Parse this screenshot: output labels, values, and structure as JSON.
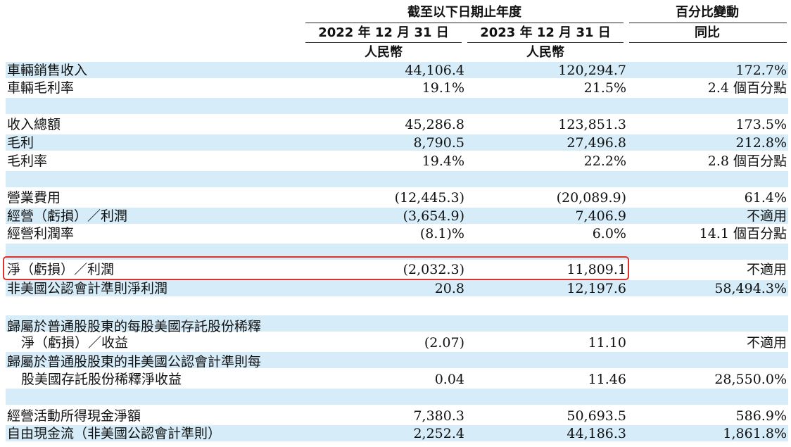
{
  "header": {
    "period_group": "截至以下日期止年度",
    "change_group": "百分比變動",
    "col_2022": "2022 年 12 月 31 日",
    "col_2023": "2023 年 12 月 31 日",
    "col_yoy": "同比",
    "currency_2022": "人民幣",
    "currency_2023": "人民幣"
  },
  "rows": [
    {
      "label": "車輛銷售收入",
      "v2022": "44,106.4",
      "v2023": "120,294.7",
      "change": "172.7%"
    },
    {
      "label": "車輛毛利率",
      "v2022": "19.1%",
      "v2023": "21.5%",
      "change": "2.4 個百分點"
    },
    {
      "label": "收入總額",
      "v2022": "45,286.8",
      "v2023": "123,851.3",
      "change": "173.5%"
    },
    {
      "label": "毛利",
      "v2022": "8,790.5",
      "v2023": "27,496.8",
      "change": "212.8%"
    },
    {
      "label": "毛利率",
      "v2022": "19.4%",
      "v2023": "22.2%",
      "change": "2.8 個百分點"
    },
    {
      "label": "營業費用",
      "v2022": "(12,445.3)",
      "v2023": "(20,089.9)",
      "change": "61.4%"
    },
    {
      "label": "經營（虧損）／利潤",
      "v2022": "(3,654.9)",
      "v2023": "7,406.9",
      "change": "不適用"
    },
    {
      "label": "經營利潤率",
      "v2022": "(8.1)%",
      "v2023": "6.0%",
      "change": "14.1 個百分點"
    },
    {
      "label": "淨（虧損）／利潤",
      "v2022": "(2,032.3)",
      "v2023": "11,809.1",
      "change": "不適用"
    },
    {
      "label": "非美國公認會計準則淨利潤",
      "v2022": "20.8",
      "v2023": "12,197.6",
      "change": "58,494.3%"
    },
    {
      "label_line1": "歸屬於普通股股東的每股美國存託股份稀釋",
      "label_line2": "淨（虧損）／收益",
      "v2022": "(2.07)",
      "v2023": "11.10",
      "change": "不適用"
    },
    {
      "label_line1": "歸屬於普通股股東的非美國公認會計準則每",
      "label_line2": "股美國存託股份稀釋淨收益",
      "v2022": "0.04",
      "v2023": "11.46",
      "change": "28,550.0%"
    },
    {
      "label": "經營活動所得現金淨額",
      "v2022": "7,380.3",
      "v2023": "50,693.5",
      "change": "586.9%"
    },
    {
      "label": "自由現金流（非美國公認會計準則）",
      "v2022": "2,252.4",
      "v2023": "44,186.3",
      "change": "1,861.8%"
    }
  ]
}
